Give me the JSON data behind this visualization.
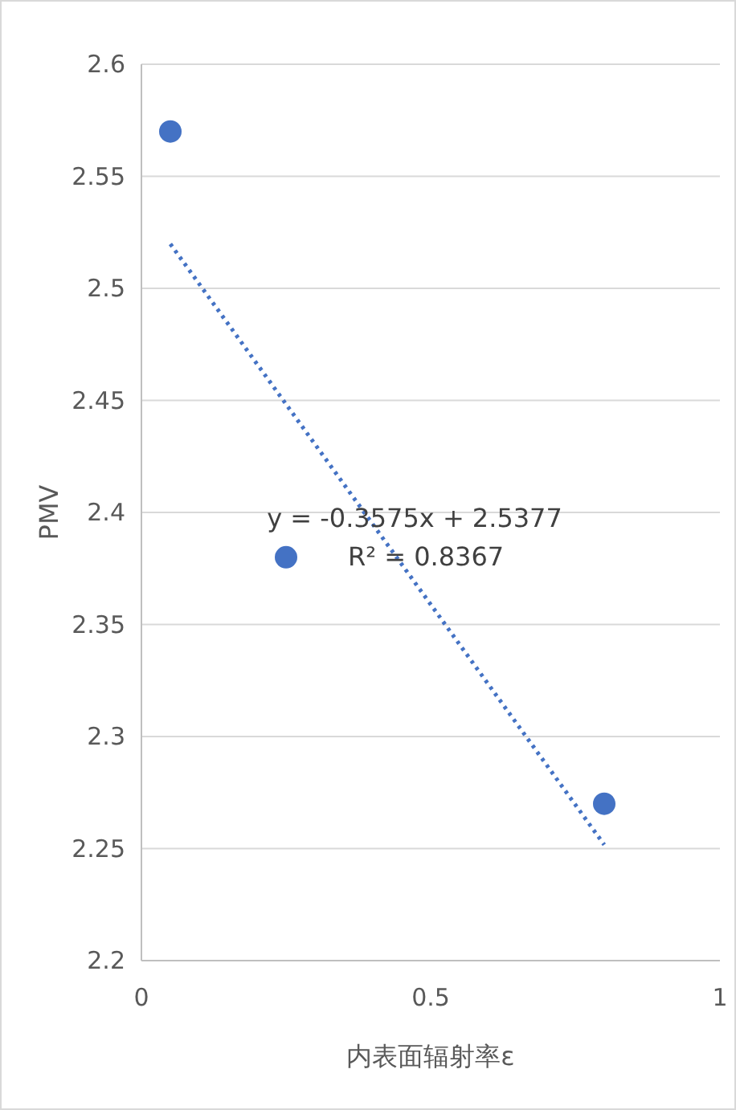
{
  "chart_data": {
    "type": "scatter",
    "xlabel": "内表面辐射率ε",
    "ylabel": "PMV",
    "xlim": [
      0,
      1
    ],
    "xticks": [
      0,
      0.5,
      1
    ],
    "ylim": [
      2.2,
      2.6
    ],
    "yticks": [
      2.2,
      2.25,
      2.3,
      2.35,
      2.4,
      2.45,
      2.5,
      2.55,
      2.6
    ],
    "grid": "y",
    "series": [
      {
        "type": "scatter",
        "marker": "circle",
        "color": "#4472c4",
        "x": [
          0.05,
          0.25,
          0.8
        ],
        "values": [
          2.57,
          2.38,
          2.27
        ]
      },
      {
        "type": "line",
        "marker": "none",
        "line_style": "dotted",
        "color": "#4472c4",
        "x": [
          0.05,
          0.8
        ],
        "values": [
          2.5198,
          2.2517
        ]
      }
    ],
    "annotations": [
      "y = -0.3575x + 2.5377",
      "R² = 0.8367"
    ]
  }
}
